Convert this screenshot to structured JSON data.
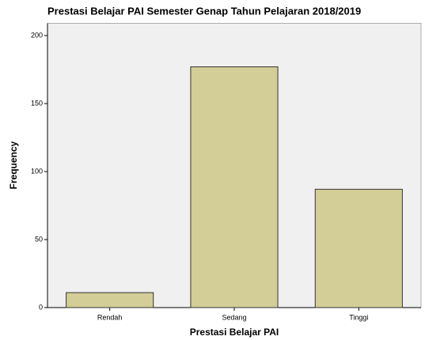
{
  "chart_data": {
    "type": "bar",
    "title": "Prestasi Belajar PAI Semester Genap Tahun Pelajaran 2018/2019",
    "x_label": "Prestasi Belajar PAI",
    "y_label": "Frequency",
    "categories": [
      "Rendah",
      "Sedang",
      "Tinggi"
    ],
    "values": [
      11,
      177,
      87
    ],
    "color": "#d3ce97",
    "ylim": [
      0,
      209
    ],
    "yticks": [
      0,
      50,
      100,
      150,
      200
    ],
    "grid": false
  }
}
